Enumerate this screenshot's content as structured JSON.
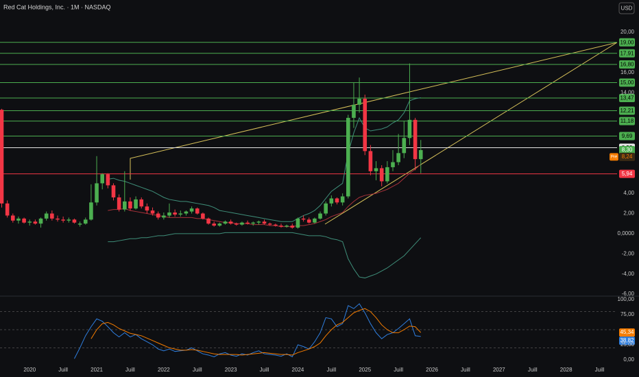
{
  "chart_data": {
    "type": "candlestick",
    "title": "Red Cat Holdings, Inc. · 1M · NASDAQ",
    "currency": "USD",
    "up_color": "#4caf50",
    "down_color": "#f23645",
    "categories": [
      null,
      null,
      null,
      null,
      null,
      "2020",
      null,
      null,
      null,
      null,
      null,
      "Juill",
      null,
      null,
      null,
      null,
      null,
      "2021",
      null,
      null,
      null,
      null,
      null,
      "Juill",
      null,
      null,
      null,
      null,
      null,
      "2022",
      null,
      null,
      null,
      null,
      null,
      "Juill",
      null,
      null,
      null,
      null,
      null,
      "2023",
      null,
      null,
      null,
      null,
      null,
      "Juill",
      null,
      null,
      null,
      null,
      null,
      "2024",
      null,
      null,
      null,
      null,
      null,
      "Juill",
      null,
      null,
      null,
      null,
      null,
      "2025",
      null,
      null,
      null,
      null,
      null,
      "Juill",
      null,
      null,
      null,
      null,
      null,
      "2026",
      null,
      null,
      null,
      null,
      null,
      "Juill",
      null,
      null,
      null,
      null,
      null,
      "2027",
      null,
      null,
      null,
      null,
      null,
      "Juill",
      null,
      null,
      null,
      null,
      null,
      "2028",
      null,
      null,
      null,
      null,
      null,
      "Juill"
    ],
    "open": [
      12.3,
      3.0,
      1.8,
      1.3,
      1.5,
      1.1,
      1.2,
      1.0,
      1.5,
      2.0,
      1.5,
      1.4,
      1.3,
      1.4,
      0.9,
      1.0,
      1.4,
      3.1,
      5.0,
      5.9,
      4.8,
      3.6,
      2.4,
      3.2,
      2.5,
      3.4,
      2.7,
      2.3,
      2.0,
      1.6,
      1.8,
      2.1,
      1.9,
      2.0,
      2.2,
      2.5,
      2.0,
      1.5,
      1.0,
      0.8,
      1.0,
      1.2,
      1.0,
      0.9,
      1.1,
      1.0,
      1.1,
      1.2,
      1.0,
      0.9,
      0.8,
      0.7,
      0.8,
      0.6,
      1.5,
      1.4,
      1.1,
      1.5,
      2.0,
      3.0,
      3.5,
      3.1,
      3.7,
      11.5,
      12.8,
      13.4,
      8.2,
      6.2,
      6.5,
      5.2,
      6.6,
      7.1,
      8.0,
      9.5,
      11.3,
      7.4,
      null,
      null,
      null,
      null,
      null,
      null,
      null,
      null,
      null,
      null,
      null,
      null,
      null,
      null,
      null,
      null,
      null,
      null,
      null,
      null,
      null,
      null,
      null,
      null,
      null,
      null,
      null,
      null,
      null,
      null,
      null,
      null
    ],
    "high": [
      12.4,
      3.3,
      2.0,
      1.7,
      1.6,
      1.4,
      1.4,
      1.6,
      2.2,
      2.3,
      1.8,
      1.7,
      1.6,
      1.5,
      1.2,
      1.6,
      4.9,
      7.7,
      6.0,
      6.0,
      5.0,
      3.9,
      6.2,
      3.6,
      3.7,
      3.6,
      3.0,
      2.6,
      2.2,
      2.1,
      3.0,
      2.4,
      2.3,
      2.3,
      2.7,
      2.6,
      2.1,
      1.6,
      1.2,
      1.1,
      1.3,
      1.4,
      1.1,
      1.2,
      1.3,
      1.2,
      1.3,
      1.4,
      1.1,
      1.0,
      1.0,
      0.9,
      1.0,
      1.6,
      1.8,
      1.6,
      1.6,
      2.2,
      3.2,
      3.8,
      3.6,
      4.0,
      11.8,
      15.0,
      15.5,
      13.8,
      8.8,
      7.2,
      6.8,
      7.2,
      8.3,
      9.9,
      11.2,
      16.9,
      11.5,
      9.3,
      null,
      null,
      null,
      null,
      null,
      null,
      null,
      null,
      null,
      null,
      null,
      null,
      null,
      null,
      null,
      null,
      null,
      null,
      null,
      null,
      null,
      null,
      null,
      null,
      null,
      null,
      null,
      null,
      null,
      null,
      null,
      null
    ],
    "low": [
      2.6,
      1.6,
      1.1,
      1.0,
      1.0,
      0.8,
      0.9,
      0.6,
      1.3,
      1.3,
      1.2,
      1.1,
      1.1,
      1.0,
      0.7,
      0.9,
      1.3,
      2.8,
      4.4,
      4.5,
      3.3,
      2.2,
      2.2,
      2.3,
      2.4,
      2.5,
      2.0,
      1.8,
      1.4,
      1.4,
      1.6,
      1.7,
      1.7,
      1.8,
      2.0,
      1.9,
      1.4,
      0.9,
      0.7,
      0.7,
      0.9,
      0.9,
      0.8,
      0.8,
      0.9,
      0.8,
      0.9,
      0.9,
      0.8,
      0.7,
      0.6,
      0.6,
      0.5,
      0.5,
      1.2,
      1.0,
      1.0,
      1.4,
      1.8,
      2.7,
      2.9,
      2.8,
      3.5,
      10.5,
      12.0,
      7.8,
      5.8,
      5.3,
      4.7,
      5.0,
      6.2,
      6.8,
      7.5,
      8.8,
      6.3,
      6.0,
      null,
      null,
      null,
      null,
      null,
      null,
      null,
      null,
      null,
      null,
      null,
      null,
      null,
      null,
      null,
      null,
      null,
      null,
      null,
      null,
      null,
      null,
      null,
      null,
      null,
      null,
      null,
      null,
      null,
      null,
      null,
      null
    ],
    "close": [
      3.0,
      1.8,
      1.3,
      1.5,
      1.1,
      1.2,
      1.0,
      1.5,
      2.0,
      1.5,
      1.4,
      1.3,
      1.4,
      1.1,
      1.0,
      1.4,
      3.1,
      5.0,
      5.9,
      4.8,
      3.6,
      2.4,
      3.2,
      2.5,
      3.4,
      2.7,
      2.3,
      2.0,
      1.6,
      1.8,
      2.1,
      1.9,
      2.0,
      2.2,
      2.5,
      2.0,
      1.5,
      1.0,
      0.8,
      1.0,
      1.2,
      1.0,
      0.9,
      1.1,
      1.0,
      1.1,
      1.2,
      1.0,
      0.9,
      0.8,
      0.7,
      0.8,
      0.6,
      1.5,
      1.4,
      1.1,
      1.5,
      2.0,
      3.0,
      3.5,
      3.1,
      3.7,
      11.5,
      12.8,
      13.4,
      8.2,
      6.2,
      6.5,
      5.2,
      6.6,
      7.1,
      8.0,
      9.5,
      11.3,
      7.4,
      8.3,
      null,
      null,
      null,
      null,
      null,
      null,
      null,
      null,
      null,
      null,
      null,
      null,
      null,
      null,
      null,
      null,
      null,
      null,
      null,
      null,
      null,
      null,
      null,
      null,
      null,
      null,
      null,
      null,
      null,
      null,
      null,
      null
    ],
    "bands": {
      "band_color": "#3f8f7a",
      "basis_color": "#a8323a",
      "upper": [
        null,
        null,
        null,
        null,
        null,
        null,
        null,
        null,
        null,
        null,
        null,
        null,
        null,
        null,
        null,
        null,
        null,
        null,
        null,
        5.4,
        5.5,
        5.3,
        5.2,
        5.0,
        4.8,
        4.6,
        4.4,
        4.2,
        3.9,
        3.6,
        3.4,
        3.3,
        3.2,
        3.2,
        3.1,
        3.0,
        2.9,
        2.8,
        2.6,
        2.3,
        2.2,
        2.1,
        2.0,
        1.9,
        1.8,
        1.7,
        1.6,
        1.5,
        1.4,
        1.3,
        1.2,
        1.2,
        1.2,
        1.5,
        1.8,
        2.0,
        2.3,
        2.8,
        3.5,
        4.2,
        4.6,
        5.0,
        8.0,
        10.0,
        11.5,
        10.5,
        10.2,
        10.3,
        10.4,
        10.6,
        11.0,
        11.3,
        12.0,
        13.2,
        13.4,
        13.5,
        null,
        null,
        null,
        null,
        null,
        null,
        null,
        null,
        null,
        null,
        null,
        null,
        null,
        null,
        null,
        null,
        null,
        null,
        null,
        null,
        null,
        null,
        null,
        null,
        null,
        null,
        null,
        null,
        null,
        null,
        null,
        null
      ],
      "basis": [
        null,
        null,
        null,
        null,
        null,
        null,
        null,
        null,
        null,
        null,
        null,
        null,
        null,
        null,
        null,
        null,
        null,
        null,
        null,
        2.3,
        2.4,
        2.4,
        2.5,
        2.3,
        2.2,
        2.1,
        2.0,
        1.9,
        1.8,
        1.7,
        1.6,
        1.6,
        1.6,
        1.6,
        1.6,
        1.5,
        1.5,
        1.4,
        1.3,
        1.2,
        1.1,
        1.1,
        1.0,
        1.0,
        1.0,
        0.9,
        0.9,
        0.9,
        0.8,
        0.8,
        0.7,
        0.7,
        0.7,
        0.8,
        0.8,
        0.9,
        1.0,
        1.2,
        1.4,
        1.7,
        1.9,
        2.1,
        2.7,
        3.2,
        3.6,
        3.8,
        3.9,
        4.0,
        4.2,
        4.4,
        4.7,
        5.0,
        5.5,
        6.0,
        6.4,
        6.9,
        null,
        null,
        null,
        null,
        null,
        null,
        null,
        null,
        null,
        null,
        null,
        null,
        null,
        null,
        null,
        null,
        null,
        null,
        null,
        null,
        null,
        null,
        null,
        null,
        null,
        null,
        null,
        null,
        null,
        null,
        null,
        null
      ],
      "lower": [
        null,
        null,
        null,
        null,
        null,
        null,
        null,
        null,
        null,
        null,
        null,
        null,
        null,
        null,
        null,
        null,
        null,
        null,
        null,
        -0.8,
        -0.8,
        -0.7,
        -0.6,
        -0.5,
        -0.5,
        -0.4,
        -0.4,
        -0.3,
        -0.2,
        -0.2,
        -0.1,
        0,
        0,
        0,
        0,
        0,
        0,
        0,
        0,
        0,
        0.1,
        0.1,
        0.1,
        0.1,
        0.1,
        0.1,
        0.1,
        0.1,
        0.1,
        0.1,
        0.1,
        0.1,
        0.1,
        0,
        -0.1,
        -0.2,
        -0.2,
        -0.2,
        -0.3,
        -0.5,
        -0.6,
        -0.8,
        -2.5,
        -3.5,
        -4.3,
        -4.4,
        -4.2,
        -4.0,
        -3.7,
        -3.4,
        -3.0,
        -2.6,
        -2.2,
        -1.6,
        -1.0,
        -0.4,
        null,
        null,
        null,
        null,
        null,
        null,
        null,
        null,
        null,
        null,
        null,
        null,
        null,
        null,
        null,
        null,
        null,
        null,
        null,
        null,
        null,
        null,
        null,
        null,
        null,
        null,
        null,
        null,
        null,
        null,
        null,
        null
      ]
    },
    "ylim": [
      -6.2,
      23.2
    ],
    "yticks": [
      {
        "value": 20,
        "label": "20,00"
      },
      {
        "value": 16,
        "label": "16,00"
      },
      {
        "value": 14,
        "label": "14,00"
      },
      {
        "value": 4,
        "label": "4,00"
      },
      {
        "value": 2,
        "label": "2,00"
      },
      {
        "value": 0,
        "label": "0,0000"
      },
      {
        "value": -2,
        "label": "-2,00"
      },
      {
        "value": -4,
        "label": "-4,00"
      },
      {
        "value": -6,
        "label": "-6,00"
      }
    ],
    "levels": [
      {
        "value": 19,
        "label": "19,00",
        "color": "#4caf50"
      },
      {
        "value": 17.91,
        "label": "17,91",
        "color": "#4caf50"
      },
      {
        "value": 16.8,
        "label": "16,80",
        "color": "#4caf50"
      },
      {
        "value": 15,
        "label": "15,00",
        "color": "#4caf50"
      },
      {
        "value": 13.47,
        "label": "13,47",
        "color": "#4caf50"
      },
      {
        "value": 12.21,
        "label": "12,21",
        "color": "#4caf50"
      },
      {
        "value": 11.18,
        "label": "11,18",
        "color": "#4caf50"
      },
      {
        "value": 9.69,
        "label": "9,69",
        "color": "#4caf50"
      },
      {
        "value": 8.53,
        "label": "8,53",
        "color": "#e6e6e6"
      },
      {
        "value": 5.94,
        "label": "5,94",
        "color": "#f23645"
      }
    ],
    "last_price": {
      "value": 8.3,
      "label": "8,30",
      "countdown": "2d 12h",
      "color": "#4caf50"
    },
    "premarket": {
      "value": 8.24,
      "label": "8,24",
      "tag": "Pré",
      "color": "#f57c00"
    },
    "rsi": {
      "ylim": [
        0,
        100
      ],
      "yticks": [
        {
          "value": 100,
          "label": "100,00"
        },
        {
          "value": 75,
          "label": "75,00"
        },
        {
          "value": 25,
          "label": "25,00"
        },
        {
          "value": 0,
          "label": "0,00"
        }
      ],
      "guides": [
        80,
        50,
        20
      ],
      "color": "#2f7fe0",
      "ma_color": "#f57c00",
      "values": [
        null,
        null,
        null,
        null,
        null,
        null,
        null,
        null,
        null,
        null,
        null,
        null,
        null,
        2,
        20,
        40,
        55,
        68,
        64,
        55,
        45,
        38,
        45,
        38,
        42,
        35,
        30,
        25,
        18,
        15,
        18,
        14,
        15,
        16,
        20,
        15,
        10,
        8,
        5,
        10,
        12,
        8,
        6,
        10,
        8,
        12,
        15,
        10,
        9,
        8,
        6,
        10,
        5,
        25,
        22,
        18,
        30,
        45,
        70,
        68,
        55,
        60,
        90,
        85,
        93,
        78,
        60,
        45,
        35,
        42,
        45,
        52,
        60,
        68,
        40,
        38.82,
        null,
        null,
        null,
        null,
        null,
        null,
        null,
        null,
        null,
        null,
        null,
        null,
        null,
        null,
        null,
        null,
        null,
        null,
        null,
        null,
        null,
        null,
        null,
        null,
        null,
        null,
        null,
        null,
        null,
        null,
        null,
        null
      ],
      "last_label": "38,82",
      "ma": [
        null,
        null,
        null,
        null,
        null,
        null,
        null,
        null,
        null,
        null,
        null,
        null,
        null,
        null,
        null,
        null,
        35,
        50,
        60,
        62,
        58,
        52,
        48,
        44,
        42,
        40,
        36,
        32,
        28,
        24,
        20,
        18,
        16,
        16,
        17,
        16,
        14,
        12,
        10,
        9,
        9,
        9,
        9,
        8,
        9,
        10,
        11,
        12,
        11,
        10,
        9,
        9,
        8,
        12,
        15,
        18,
        22,
        28,
        40,
        50,
        58,
        62,
        70,
        78,
        82,
        85,
        80,
        70,
        58,
        50,
        45,
        45,
        50,
        56,
        55,
        45.34,
        null,
        null,
        null,
        null,
        null,
        null,
        null,
        null,
        null,
        null,
        null,
        null,
        null,
        null,
        null,
        null,
        null,
        null,
        null,
        null,
        null,
        null,
        null,
        null,
        null,
        null,
        null,
        null,
        null,
        null,
        null,
        null
      ],
      "ma_last_label": "45,34"
    }
  }
}
